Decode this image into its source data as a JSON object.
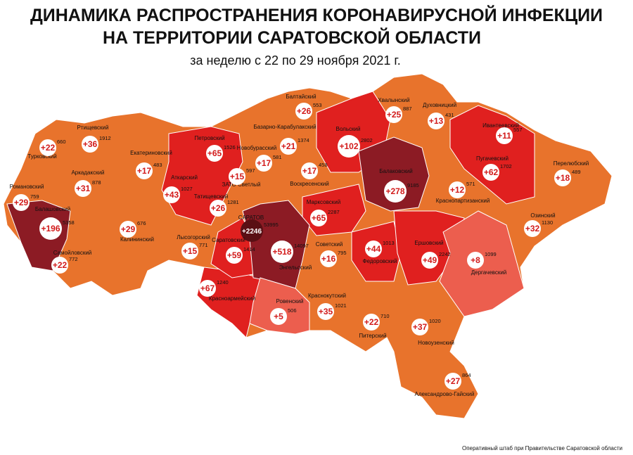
{
  "header": {
    "title_line1": "ДИНАМИКА РАСПРОСТРАНЕНИЯ КОРОНАВИРУСНОЙ ИНФЕКЦИИ",
    "title_line2": "НА ТЕРРИТОРИИ САРАТОВСКОЙ ОБЛАСТИ",
    "subtitle": "за неделю с 22 по 29 ноября 2021 г."
  },
  "districts": [
    {
      "name": "Ртищевский",
      "new": "+36",
      "total": 1912
    },
    {
      "name": "Турковский",
      "new": "+22",
      "total": 660
    },
    {
      "name": "Екатериновский",
      "new": "+17",
      "total": 483
    },
    {
      "name": "Петровский",
      "new": "+65",
      "total": 1526
    },
    {
      "name": "Балтайский",
      "new": "+26",
      "total": 553
    },
    {
      "name": "Хвалынский",
      "new": "+25",
      "total": 887
    },
    {
      "name": "Духовницкий",
      "new": "+13",
      "total": 431
    },
    {
      "name": "Ивантеевский",
      "new": "+11",
      "total": 557
    },
    {
      "name": "Базарно-Карабулакский",
      "new": "+21",
      "total": 1374
    },
    {
      "name": "Вольский",
      "new": "+102",
      "total": 2802
    },
    {
      "name": "Новобурасский",
      "new": "+17",
      "total": 581
    },
    {
      "name": "Аткарский",
      "new": "+43",
      "total": 1027
    },
    {
      "name": "Аркадакский",
      "new": "+31",
      "total": 878
    },
    {
      "name": "ЗАТО Светлый",
      "new": "+15",
      "total": 597
    },
    {
      "name": "Воскресенский",
      "new": "+17",
      "total": 458
    },
    {
      "name": "Балаковский",
      "new": "+278",
      "total": 9185
    },
    {
      "name": "Пугачевский",
      "new": "+62",
      "total": 1702
    },
    {
      "name": "Перелюбский",
      "new": "+18",
      "total": 489
    },
    {
      "name": "Романовский",
      "new": "+29",
      "total": 759
    },
    {
      "name": "Татищевский",
      "new": "+26",
      "total": 1281
    },
    {
      "name": "Краснопартизанский",
      "new": "+12",
      "total": 571
    },
    {
      "name": "Балашовский",
      "new": "+196",
      "total": 5358
    },
    {
      "name": "Калининский",
      "new": "+29",
      "total": 676
    },
    {
      "name": "САРАТОВ",
      "new": "+2246",
      "total": 53995
    },
    {
      "name": "Марксовский",
      "new": "+65",
      "total": 2287
    },
    {
      "name": "Озинский",
      "new": "+32",
      "total": 1130
    },
    {
      "name": "Лысогорский",
      "new": "+15",
      "total": 771
    },
    {
      "name": "Саратовский",
      "new": "+59",
      "total": 1414
    },
    {
      "name": "Энгельсский",
      "new": "+518",
      "total": 14097
    },
    {
      "name": "Советский",
      "new": "+16",
      "total": 795
    },
    {
      "name": "Федоровский",
      "new": "+44",
      "total": 1013
    },
    {
      "name": "Ершовский",
      "new": "+49",
      "total": 2242
    },
    {
      "name": "Дергачевский",
      "new": "+8",
      "total": 1099
    },
    {
      "name": "Самойловский",
      "new": "+22",
      "total": 772
    },
    {
      "name": "Красноармейский",
      "new": "+67",
      "total": 1240
    },
    {
      "name": "Ровенский",
      "new": "+5",
      "total": 506
    },
    {
      "name": "Краснокутский",
      "new": "+35",
      "total": 1021
    },
    {
      "name": "Питерский",
      "new": "+22",
      "total": 710
    },
    {
      "name": "Новоузенский",
      "new": "+37",
      "total": 1020
    },
    {
      "name": "Александрово-Гайский",
      "new": "+27",
      "total": 864
    }
  ],
  "footer": "Оперативный штаб при Правительстве Саратовской области"
}
